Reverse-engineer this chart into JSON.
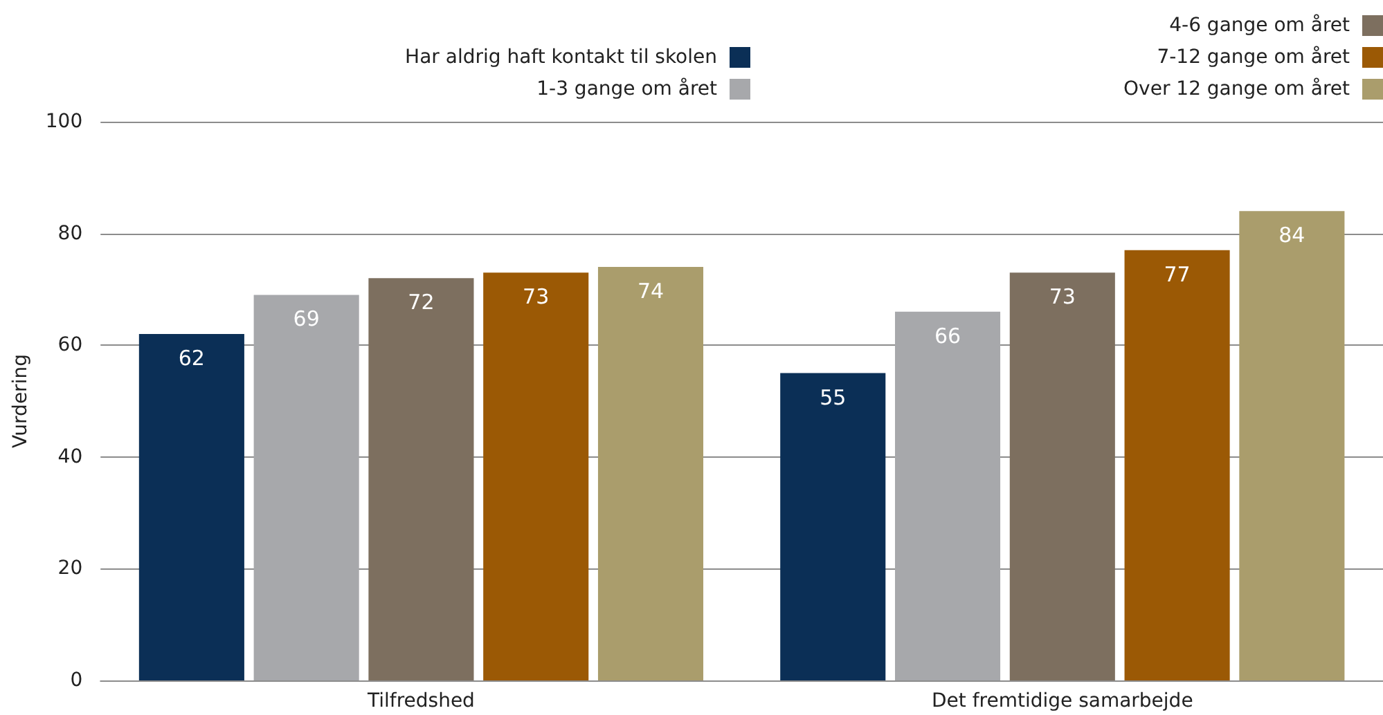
{
  "chart_data": {
    "type": "bar",
    "ylabel": "Vurdering",
    "categories": [
      "Tilfredshed",
      "Det fremtidige samarbejde"
    ],
    "series": [
      {
        "name": "Har aldrig haft kontakt til skolen",
        "color": "#0b2f56",
        "values": [
          62,
          55
        ]
      },
      {
        "name": "1-3 gange om året",
        "color": "#a7a8ab",
        "values": [
          69,
          66
        ]
      },
      {
        "name": "4-6 gange om året",
        "color": "#7d6f5f",
        "values": [
          72,
          73
        ]
      },
      {
        "name": "7-12 gange om året",
        "color": "#9b5905",
        "values": [
          73,
          77
        ]
      },
      {
        "name": "Over 12 gange om året",
        "color": "#aa9d6c",
        "values": [
          74,
          84
        ]
      }
    ],
    "ylim": [
      0,
      100
    ],
    "yticks": [
      0,
      20,
      40,
      60,
      80,
      100
    ],
    "grid": "y",
    "legend": "top right",
    "data_labels": true
  }
}
